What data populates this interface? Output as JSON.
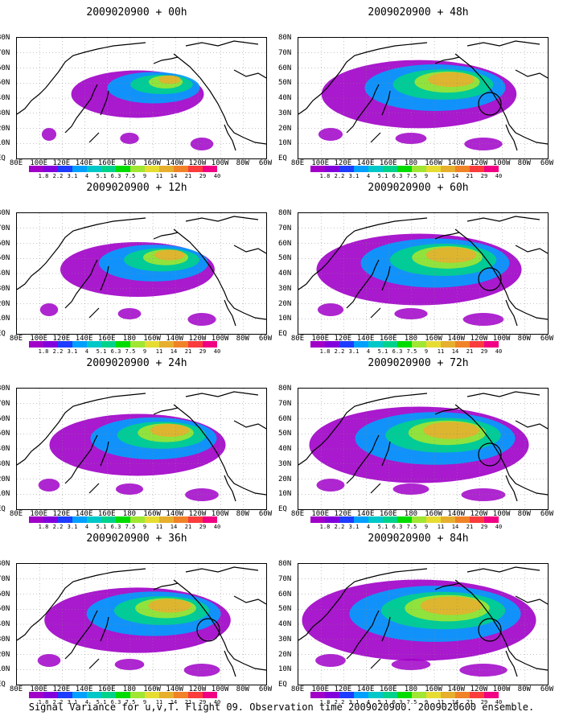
{
  "panels": [
    {
      "title": "2009020900 + 00h",
      "intensity": 0.25,
      "circle": false
    },
    {
      "title": "2009020900 + 12h",
      "intensity": 0.4,
      "circle": false
    },
    {
      "title": "2009020900 + 24h",
      "intensity": 0.55,
      "circle": false
    },
    {
      "title": "2009020900 + 36h",
      "intensity": 0.62,
      "circle": true
    },
    {
      "title": "2009020900 + 48h",
      "intensity": 0.68,
      "circle": true
    },
    {
      "title": "2009020900 + 60h",
      "intensity": 0.75,
      "circle": true
    },
    {
      "title": "2009020900 + 72h",
      "intensity": 0.85,
      "circle": true
    },
    {
      "title": "2009020900 + 84h",
      "intensity": 0.95,
      "circle": true
    }
  ],
  "axes": {
    "x_labels": [
      "80E",
      "100E",
      "120E",
      "140E",
      "160E",
      "180",
      "160W",
      "140W",
      "120W",
      "100W",
      "80W",
      "60W"
    ],
    "y_labels": [
      "80N",
      "70N",
      "60N",
      "50N",
      "40N",
      "30N",
      "20N",
      "10N",
      "EQ"
    ]
  },
  "colorbar": {
    "labels": [
      "1.8",
      "2.2",
      "3.1",
      "4",
      "5.1",
      "6.3",
      "7.5",
      "9",
      "11",
      "14",
      "21",
      "29",
      "40"
    ],
    "colors": [
      "#a000c8",
      "#8200dc",
      "#1e3cff",
      "#00a0ff",
      "#00c8c8",
      "#00d28c",
      "#00dc00",
      "#a0e632",
      "#e6dc32",
      "#e6af2d",
      "#f08228",
      "#fa3c3c",
      "#f00082"
    ]
  },
  "caption": "Signal Variance for u,v,T. Flight 09. Observation time 2009020900. 2009020600 ensemble."
}
